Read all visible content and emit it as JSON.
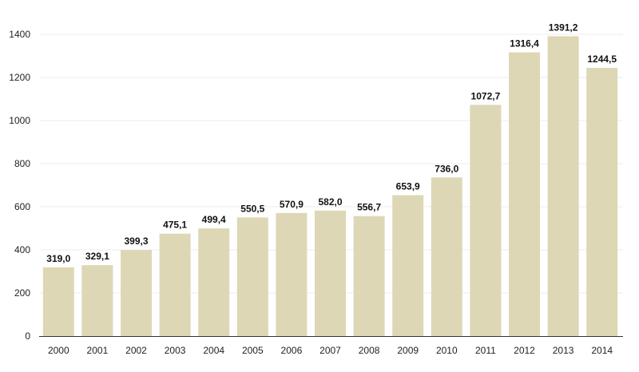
{
  "chart_data": {
    "type": "bar",
    "title": "",
    "xlabel": "",
    "ylabel": "",
    "ylim": [
      0,
      1400
    ],
    "yticks": [
      0,
      200,
      400,
      600,
      800,
      1000,
      1200,
      1400
    ],
    "grid": true,
    "bar_color": "#ddd7b6",
    "categories": [
      "2000",
      "2001",
      "2002",
      "2003",
      "2004",
      "2005",
      "2006",
      "2007",
      "2008",
      "2009",
      "2010",
      "2011",
      "2012",
      "2013",
      "2014"
    ],
    "values": [
      319.0,
      329.1,
      399.3,
      475.1,
      499.4,
      550.5,
      570.9,
      582.0,
      556.7,
      653.9,
      736.0,
      1072.7,
      1316.4,
      1391.2,
      1244.5
    ],
    "value_labels": [
      "319,0",
      "329,1",
      "399,3",
      "475,1",
      "499,4",
      "550,5",
      "570,9",
      "582,0",
      "556,7",
      "653,9",
      "736,0",
      "1072,7",
      "1316,4",
      "1391,2",
      "1244,5"
    ]
  }
}
